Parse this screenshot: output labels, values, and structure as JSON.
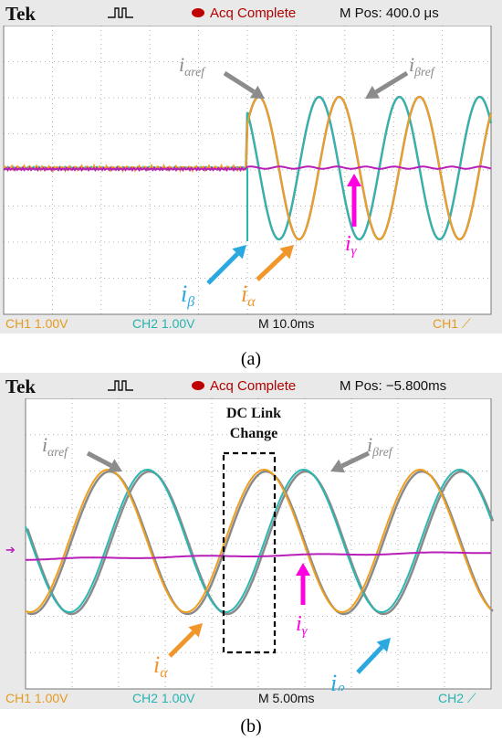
{
  "panels": [
    {
      "id": "a",
      "brand": "Tek",
      "status": "Acq Complete",
      "mpos": "M Pos: 400.0 μs",
      "ch1": "CH1  1.00V",
      "ch2": "CH2  1.00V",
      "timebase": "M 10.0ms",
      "trigger": "CH1",
      "caption": "(a)",
      "labels": {
        "ia_ref": "i",
        "ia_ref_sub": "αref",
        "ib_ref": "i",
        "ib_ref_sub": "βref",
        "ib": "i",
        "ib_sub": "β",
        "ia": "i",
        "ia_sub": "α",
        "ig": "i",
        "ig_sub": "γ"
      }
    },
    {
      "id": "b",
      "brand": "Tek",
      "status": "Acq Complete",
      "mpos": "M Pos: −5.800ms",
      "ch1": "CH1  1.00V",
      "ch2": "CH2  1.00V",
      "timebase": "M 5.00ms",
      "trigger": "CH2",
      "caption": "(b)",
      "dc_link_1": "DC Link",
      "dc_link_2": "Change",
      "labels": {
        "ia_ref": "i",
        "ia_ref_sub": "αref",
        "ib_ref": "i",
        "ib_ref_sub": "βref",
        "ib": "i",
        "ib_sub": "β",
        "ia": "i",
        "ia_sub": "α",
        "ig": "i",
        "ig_sub": "γ"
      }
    }
  ],
  "colors": {
    "alpha": "#f0a020",
    "beta": "#2ab7b2",
    "ref": "#8a8a8a",
    "gamma": "#b81fb8",
    "grid": "#9a9a9a",
    "arrow_gray": "#8c8c8c",
    "arrow_blue": "#2aa8e0",
    "arrow_orange": "#f0962a",
    "arrow_magenta": "#ff00e0"
  },
  "chart_data": [
    {
      "type": "line",
      "title": "(a)",
      "timebase": "10.0 ms/div",
      "vertical_scale": "1.00 V/div",
      "x_divisions": 10,
      "y_divisions": 8,
      "grid": true,
      "series": [
        {
          "name": "iα",
          "values_div": {
            "amplitude": 2.0,
            "before_step": 0,
            "step_at_div": 5.0,
            "period_div": 1.62
          }
        },
        {
          "name": "iβ",
          "values_div": {
            "amplitude": 2.0,
            "before_step": 0,
            "step_at_div": 5.0,
            "period_div": 1.62
          }
        },
        {
          "name": "iαref",
          "values_div": {
            "amplitude": 2.0,
            "step_at_div": 5.0
          }
        },
        {
          "name": "iβref",
          "values_div": {
            "amplitude": 2.0,
            "step_at_div": 5.0
          }
        },
        {
          "name": "iγ",
          "values_div": {
            "amplitude": 0,
            "offset": 0
          }
        }
      ]
    },
    {
      "type": "line",
      "title": "(b)",
      "timebase": "5.00 ms/div",
      "vertical_scale": "1.00 V/div",
      "x_divisions": 10,
      "y_divisions": 8,
      "grid": true,
      "series": [
        {
          "name": "iα",
          "values_div": {
            "amplitude": 2.0,
            "period_div": 3.35
          }
        },
        {
          "name": "iβ",
          "values_div": {
            "amplitude": 2.0,
            "period_div": 3.35
          }
        },
        {
          "name": "iαref",
          "values_div": {
            "amplitude": 2.0
          }
        },
        {
          "name": "iβref",
          "values_div": {
            "amplitude": 2.0
          }
        },
        {
          "name": "iγ",
          "values_div": {
            "amplitude": 0,
            "offset": 0
          }
        }
      ],
      "annotation": "DC Link Change"
    }
  ]
}
